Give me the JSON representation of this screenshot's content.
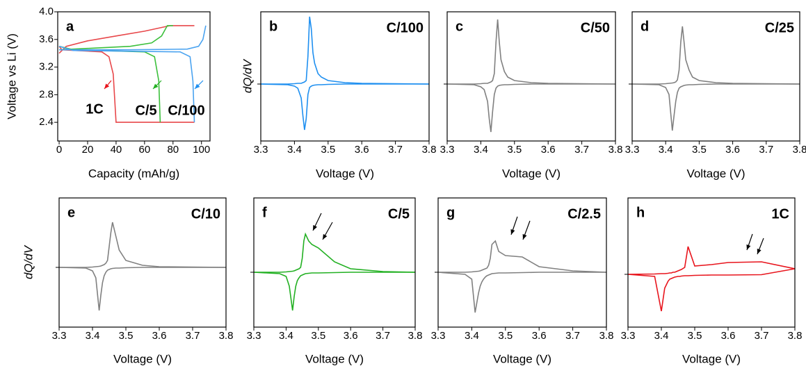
{
  "chart_data": [
    {
      "type": "line",
      "label": "a",
      "xlabel": "Capacity (mAh/g)",
      "ylabel": "Voltage vs Li (V)",
      "xlim": [
        -1,
        106
      ],
      "xticks": [
        0,
        20,
        40,
        60,
        80,
        100
      ],
      "ylim": [
        2.13,
        4.0
      ],
      "yticks": [
        2.4,
        2.8,
        3.2,
        3.6,
        {
          "value": 4,
          "label": "4.0"
        }
      ],
      "annotations": [
        {
          "text": "1C",
          "color": "#e8141c"
        },
        {
          "text": "C/5",
          "color": "#22b022"
        },
        {
          "text": "C/100",
          "color": "#1e8ff0"
        }
      ],
      "series": [
        {
          "color": "#e8474a",
          "x": [
            0,
            5,
            20,
            40,
            60,
            78,
            95
          ],
          "values": [
            3.4,
            3.5,
            3.58,
            3.65,
            3.72,
            3.8,
            3.8
          ]
        },
        {
          "color": "#e8474a",
          "x": [
            0,
            2,
            30,
            35,
            38,
            40,
            95
          ],
          "values": [
            3.5,
            3.45,
            3.42,
            3.35,
            3.1,
            2.4,
            2.4
          ]
        },
        {
          "color": "#3cc03c",
          "x": [
            0,
            20,
            50,
            65,
            72,
            76,
            80
          ],
          "values": [
            3.45,
            3.47,
            3.5,
            3.55,
            3.65,
            3.8,
            3.8
          ]
        },
        {
          "color": "#3cc03c",
          "x": [
            0,
            10,
            60,
            67,
            70,
            71
          ],
          "values": [
            3.5,
            3.45,
            3.42,
            3.35,
            3.0,
            2.4
          ]
        },
        {
          "color": "#4aa3f0",
          "x": [
            0,
            50,
            90,
            98,
            101,
            103
          ],
          "values": [
            3.45,
            3.45,
            3.46,
            3.5,
            3.6,
            3.8
          ]
        },
        {
          "color": "#4aa3f0",
          "x": [
            0,
            10,
            85,
            92,
            94,
            95
          ],
          "values": [
            3.5,
            3.44,
            3.42,
            3.35,
            3.0,
            2.4
          ]
        }
      ]
    },
    {
      "type": "line",
      "label": "b",
      "rate": "C/100",
      "rate_color": "#1e8ff0",
      "xlabel": "Voltage (V)",
      "ylabel": "dQ/dV",
      "xlim": [
        3.3,
        3.8
      ],
      "xticks": [
        3.3,
        3.4,
        3.5,
        3.6,
        3.7,
        3.8
      ],
      "ylim": [
        -0.82,
        1.04
      ],
      "yticks": [
        0
      ],
      "x": [
        3.3,
        3.38,
        3.4,
        3.41,
        3.42,
        3.425,
        3.43,
        3.435,
        3.44,
        3.445,
        3.45,
        3.455,
        3.46,
        3.47,
        3.48,
        3.5,
        3.55,
        3.6,
        3.7,
        3.8
      ],
      "series": [
        {
          "color": "#1e8ff0",
          "values": [
            0,
            0,
            0.005,
            0.01,
            0.01,
            0.02,
            0.03,
            0.05,
            0.4,
            0.97,
            0.8,
            0.45,
            0.3,
            0.15,
            0.1,
            0.05,
            0.02,
            0.01,
            0.005,
            0
          ]
        },
        {
          "color": "#1e8ff0",
          "values": [
            0,
            -0.01,
            -0.03,
            -0.06,
            -0.2,
            -0.45,
            -0.66,
            -0.5,
            -0.15,
            -0.05,
            -0.03,
            -0.02,
            -0.015,
            -0.01,
            -0.01,
            -0.005,
            0,
            0,
            0,
            0
          ]
        }
      ]
    },
    {
      "type": "line",
      "label": "c",
      "rate": "C/50",
      "rate_color": "#8a8a8a",
      "xlabel": "Voltage (V)",
      "xlim": [
        3.3,
        3.8
      ],
      "xticks": [
        3.3,
        3.4,
        3.5,
        3.6,
        3.7,
        3.8
      ],
      "ylim": [
        -0.82,
        1.04
      ],
      "yticks": [
        0
      ],
      "x": [
        3.3,
        3.38,
        3.4,
        3.41,
        3.42,
        3.425,
        3.43,
        3.435,
        3.44,
        3.445,
        3.45,
        3.455,
        3.46,
        3.47,
        3.48,
        3.5,
        3.55,
        3.6,
        3.7,
        3.8
      ],
      "series": [
        {
          "color": "#808080",
          "values": [
            0,
            0,
            0.005,
            0.01,
            0.01,
            0.02,
            0.03,
            0.05,
            0.15,
            0.6,
            0.93,
            0.6,
            0.35,
            0.18,
            0.1,
            0.05,
            0.02,
            0.01,
            0.005,
            0
          ]
        },
        {
          "color": "#808080",
          "values": [
            0,
            -0.01,
            -0.04,
            -0.08,
            -0.25,
            -0.5,
            -0.69,
            -0.4,
            -0.15,
            -0.06,
            -0.03,
            -0.02,
            -0.015,
            -0.01,
            -0.01,
            -0.005,
            0,
            0,
            0,
            0
          ]
        }
      ]
    },
    {
      "type": "line",
      "label": "d",
      "rate": "C/25",
      "rate_color": "#8a8a8a",
      "xlabel": "Voltage (V)",
      "xlim": [
        3.3,
        3.8
      ],
      "xticks": [
        3.3,
        3.4,
        3.5,
        3.6,
        3.7,
        3.8
      ],
      "ylim": [
        -0.82,
        1.04
      ],
      "yticks": [
        0
      ],
      "x": [
        3.3,
        3.38,
        3.4,
        3.41,
        3.42,
        3.425,
        3.43,
        3.435,
        3.44,
        3.445,
        3.45,
        3.455,
        3.46,
        3.47,
        3.48,
        3.5,
        3.55,
        3.6,
        3.7,
        3.8
      ],
      "series": [
        {
          "color": "#808080",
          "values": [
            0,
            0,
            0.005,
            0.01,
            0.015,
            0.02,
            0.03,
            0.06,
            0.2,
            0.6,
            0.83,
            0.6,
            0.35,
            0.2,
            0.1,
            0.05,
            0.02,
            0.01,
            0.005,
            0
          ]
        },
        {
          "color": "#808080",
          "values": [
            0,
            -0.01,
            -0.05,
            -0.15,
            -0.67,
            -0.45,
            -0.25,
            -0.12,
            -0.06,
            -0.04,
            -0.03,
            -0.02,
            -0.015,
            -0.01,
            -0.01,
            -0.005,
            0,
            0,
            0,
            0
          ]
        }
      ]
    },
    {
      "type": "line",
      "label": "e",
      "rate": "C/10",
      "rate_color": "#8a8a8a",
      "xlabel": "Voltage (V)",
      "ylabel": "dQ/dV",
      "xlim": [
        3.3,
        3.8
      ],
      "xticks": [
        3.3,
        3.4,
        3.5,
        3.6,
        3.7,
        3.8
      ],
      "ylim": [
        -0.86,
        1.0
      ],
      "yticks": [
        0
      ],
      "x": [
        3.3,
        3.38,
        3.4,
        3.41,
        3.42,
        3.425,
        3.43,
        3.435,
        3.44,
        3.445,
        3.45,
        3.455,
        3.46,
        3.47,
        3.48,
        3.5,
        3.55,
        3.6,
        3.7,
        3.8
      ],
      "series": [
        {
          "color": "#808080",
          "values": [
            0,
            0,
            0.005,
            0.01,
            0.015,
            0.02,
            0.03,
            0.04,
            0.06,
            0.1,
            0.3,
            0.5,
            0.65,
            0.45,
            0.25,
            0.1,
            0.03,
            0.01,
            0.005,
            0
          ]
        },
        {
          "color": "#808080",
          "values": [
            0,
            -0.01,
            -0.05,
            -0.15,
            -0.62,
            -0.4,
            -0.22,
            -0.12,
            -0.07,
            -0.04,
            -0.03,
            -0.02,
            -0.015,
            -0.01,
            -0.01,
            -0.005,
            0,
            0,
            0,
            0
          ]
        }
      ]
    },
    {
      "type": "line",
      "label": "f",
      "rate": "C/5",
      "rate_color": "#22b022",
      "xlabel": "Voltage (V)",
      "xlim": [
        3.3,
        3.8
      ],
      "xticks": [
        3.3,
        3.4,
        3.5,
        3.6,
        3.7,
        3.8
      ],
      "ylim": [
        -0.79,
        1.07
      ],
      "yticks": [
        0
      ],
      "x": [
        3.3,
        3.38,
        3.4,
        3.41,
        3.42,
        3.425,
        3.43,
        3.435,
        3.44,
        3.445,
        3.45,
        3.455,
        3.46,
        3.47,
        3.48,
        3.5,
        3.55,
        3.6,
        3.7,
        3.8
      ],
      "series": [
        {
          "color": "#22b022",
          "values": [
            0,
            0,
            0.005,
            0.01,
            0.015,
            0.02,
            0.03,
            0.04,
            0.05,
            0.07,
            0.2,
            0.45,
            0.55,
            0.45,
            0.4,
            0.35,
            0.15,
            0.05,
            0.01,
            0
          ]
        },
        {
          "color": "#22b022",
          "values": [
            0,
            -0.02,
            -0.06,
            -0.2,
            -0.55,
            -0.35,
            -0.2,
            -0.12,
            -0.08,
            -0.05,
            -0.04,
            -0.03,
            -0.02,
            -0.015,
            -0.01,
            -0.01,
            -0.005,
            0,
            0,
            0
          ]
        }
      ]
    },
    {
      "type": "line",
      "label": "g",
      "rate": "C/2.5",
      "rate_color": "#8a8a8a",
      "xlabel": "Voltage (V)",
      "xlim": [
        3.3,
        3.8
      ],
      "xticks": [
        3.3,
        3.4,
        3.5,
        3.6,
        3.7,
        3.8
      ],
      "ylim": [
        -0.79,
        1.07
      ],
      "yticks": [
        0
      ],
      "x": [
        3.3,
        3.38,
        3.4,
        3.41,
        3.42,
        3.425,
        3.43,
        3.435,
        3.44,
        3.445,
        3.45,
        3.455,
        3.46,
        3.47,
        3.48,
        3.5,
        3.55,
        3.6,
        3.7,
        3.8
      ],
      "series": [
        {
          "color": "#808080",
          "values": [
            0,
            0,
            0.005,
            0.01,
            0.015,
            0.02,
            0.03,
            0.04,
            0.05,
            0.06,
            0.1,
            0.2,
            0.4,
            0.45,
            0.3,
            0.24,
            0.22,
            0.08,
            0.02,
            0
          ]
        },
        {
          "color": "#808080",
          "values": [
            0,
            -0.03,
            -0.1,
            -0.58,
            -0.3,
            -0.2,
            -0.14,
            -0.1,
            -0.07,
            -0.05,
            -0.04,
            -0.03,
            -0.02,
            -0.015,
            -0.01,
            -0.01,
            -0.005,
            0,
            0,
            0
          ]
        }
      ]
    },
    {
      "type": "line",
      "label": "h",
      "rate": "1C",
      "rate_color": "#e8141c",
      "xlabel": "Voltage (V)",
      "xlim": [
        3.3,
        3.8
      ],
      "xticks": [
        3.3,
        3.4,
        3.5,
        3.6,
        3.7,
        3.8
      ],
      "ylim": [
        -0.76,
        1.1
      ],
      "yticks": [
        0
      ],
      "x": [
        3.3,
        3.38,
        3.4,
        3.41,
        3.42,
        3.425,
        3.43,
        3.435,
        3.44,
        3.445,
        3.45,
        3.455,
        3.46,
        3.47,
        3.48,
        3.5,
        3.55,
        3.6,
        3.7,
        3.8
      ],
      "series": [
        {
          "color": "#e8141c",
          "values": [
            0,
            0.005,
            0.01,
            0.01,
            0.015,
            0.02,
            0.02,
            0.03,
            0.03,
            0.04,
            0.05,
            0.06,
            0.07,
            0.1,
            0.4,
            0.12,
            0.14,
            0.17,
            0.18,
            0.08
          ]
        },
        {
          "color": "#e8141c",
          "values": [
            0,
            -0.03,
            -0.53,
            -0.2,
            -0.1,
            -0.07,
            -0.06,
            -0.05,
            -0.04,
            -0.035,
            -0.03,
            -0.03,
            -0.025,
            -0.02,
            -0.02,
            -0.015,
            -0.01,
            -0.01,
            -0.005,
            0.08
          ]
        }
      ]
    }
  ]
}
